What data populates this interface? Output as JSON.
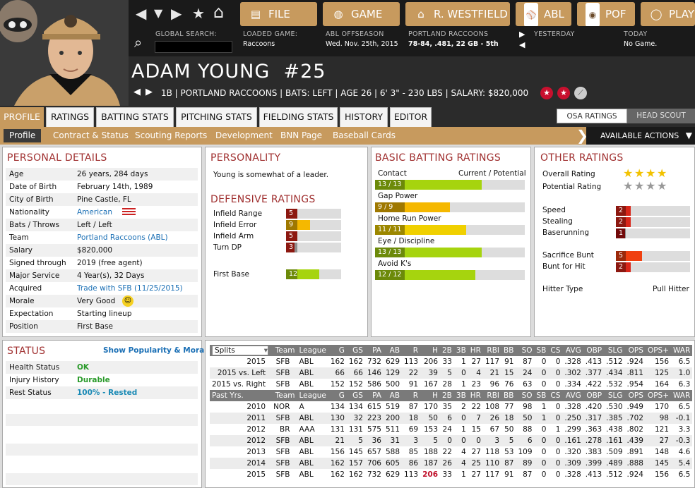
{
  "nav": {
    "back": "◀",
    "down": "▼",
    "forward": "▶",
    "star": "★",
    "home": "⌂"
  },
  "topbuttons": [
    {
      "label": "FILE",
      "icon": "file-icon"
    },
    {
      "label": "GAME",
      "icon": "globe-icon"
    },
    {
      "label": "R. WESTFIELD",
      "icon": "home-icon"
    },
    {
      "label": "ABL",
      "icon": "league-logo"
    },
    {
      "label": "POF",
      "icon": "team-logo"
    },
    {
      "label": "PLAY",
      "icon": "baseball-icon"
    }
  ],
  "info": {
    "search_label": "GLOBAL SEARCH:",
    "loaded_label": "LOADED GAME:",
    "loaded_value": "Raccoons",
    "season_label": "ABL OFFSEASON",
    "season_value": "Wed. Nov. 25th, 2015",
    "team_label": "PORTLAND RACCOONS",
    "team_value": "78-84, .481, 22 GB - 5th",
    "yesterday_label": "YESTERDAY",
    "today_label": "TODAY",
    "today_value": "No Game."
  },
  "player": {
    "name": "ADAM YOUNG  #25",
    "meta": "1B | PORTLAND RACCOONS  |  BATS: LEFT  |  AGE 26  |  6' 3\" - 230 LBS  |  SALARY: $820,000"
  },
  "tabs": [
    "PROFILE",
    "RATINGS",
    "BATTING STATS",
    "PITCHING STATS",
    "FIELDING STATS",
    "HISTORY",
    "EDITOR"
  ],
  "toggles": {
    "osa": "OSA RATINGS",
    "scout": "HEAD SCOUT"
  },
  "subtabs": [
    "Profile",
    "Contract & Status",
    "Scouting Reports",
    "Development",
    "BNN Page",
    "Baseball Cards"
  ],
  "actions": "AVAILABLE ACTIONS",
  "personal": {
    "title": "PERSONAL DETAILS",
    "rows": [
      {
        "k": "Age",
        "v": "26 years, 284 days"
      },
      {
        "k": "Date of Birth",
        "v": "February 14th, 1989"
      },
      {
        "k": "City of Birth",
        "v": "Pine Castle, FL"
      },
      {
        "k": "Nationality",
        "v": "American"
      },
      {
        "k": "Bats / Throws",
        "v": "Left / Left"
      },
      {
        "k": "Team",
        "v": "Portland Raccoons (ABL)"
      },
      {
        "k": "Salary",
        "v": "$820,000"
      },
      {
        "k": "Signed through",
        "v": "2019 (free agent)"
      },
      {
        "k": "Major Service",
        "v": "4 Year(s), 32 Days"
      },
      {
        "k": "Acquired",
        "v": "Trade with SFB (11/25/2015)"
      },
      {
        "k": "Morale",
        "v": "Very Good"
      },
      {
        "k": "Expectation",
        "v": "Starting lineup"
      },
      {
        "k": "Position",
        "v": "First Base"
      }
    ]
  },
  "personality": {
    "title": "PERSONALITY",
    "text": "Young is somewhat of a leader."
  },
  "defensive": {
    "title": "DEFENSIVE RATINGS",
    "rows": [
      {
        "k": "Infield Range",
        "v": "5",
        "frac": 0.2,
        "color": "#d8261a"
      },
      {
        "k": "Infield Error",
        "v": "9",
        "frac": 0.44,
        "color": "#f5b800"
      },
      {
        "k": "Infield Arm",
        "v": "5",
        "frac": 0.2,
        "color": "#d8261a"
      },
      {
        "k": "Turn DP",
        "v": "3",
        "frac": 0.15,
        "color": "#d8261a"
      },
      {
        "k": "First Base",
        "v": "12",
        "frac": 0.6,
        "color": "#a6d40e"
      }
    ]
  },
  "batting": {
    "title": "BASIC BATTING RATINGS",
    "header": "Current / Potential",
    "rows": [
      {
        "k": "Contact",
        "v": "13 / 13",
        "frac": 0.71,
        "color": "#a6d40e"
      },
      {
        "k": "Gap Power",
        "v": "9 / 9",
        "frac": 0.5,
        "color": "#f5b800"
      },
      {
        "k": "Home Run Power",
        "v": "11 / 11",
        "frac": 0.61,
        "color": "#f0d000"
      },
      {
        "k": "Eye / Discipline",
        "v": "13 / 13",
        "frac": 0.71,
        "color": "#a6d40e"
      },
      {
        "k": "Avoid K's",
        "v": "12 / 12",
        "frac": 0.67,
        "color": "#a6d40e"
      }
    ]
  },
  "other": {
    "title": "OTHER RATINGS",
    "overall": "Overall Rating",
    "potential": "Potential Rating",
    "overall_stars": 4,
    "potential_stars": 4,
    "rows": [
      {
        "k": "Speed",
        "v": "2",
        "frac": 0.2,
        "color": "#d8261a"
      },
      {
        "k": "Stealing",
        "v": "2",
        "frac": 0.2,
        "color": "#d8261a"
      },
      {
        "k": "Baserunning",
        "v": "1",
        "frac": 0.12,
        "color": "#b01010"
      },
      {
        "k": "Sacrifice Bunt",
        "v": "5",
        "frac": 0.35,
        "color": "#f04010"
      },
      {
        "k": "Bunt for Hit",
        "v": "2",
        "frac": 0.2,
        "color": "#d8261a"
      }
    ],
    "hitter_label": "Hitter Type",
    "hitter_value": "Pull Hitter"
  },
  "status": {
    "title": "STATUS",
    "link": "Show Popularity & Morale",
    "rows": [
      {
        "k": "Health Status",
        "v": "OK",
        "color": "#2a9a2a"
      },
      {
        "k": "Injury History",
        "v": "Durable",
        "color": "#2a9a2a"
      },
      {
        "k": "Rest Status",
        "v": "100% - Rested",
        "color": "#1a8ab5"
      }
    ]
  },
  "stats": {
    "select": "Splits",
    "headers": [
      "Team",
      "League",
      "G",
      "GS",
      "PA",
      "AB",
      "R",
      "H",
      "2B",
      "3B",
      "HR",
      "RBI",
      "BB",
      "SO",
      "SB",
      "CS",
      "AVG",
      "OBP",
      "SLG",
      "OPS",
      "OPS+",
      "WAR"
    ],
    "splits": [
      [
        "2015",
        "SFB",
        "ABL",
        "162",
        "162",
        "732",
        "629",
        "113",
        "206",
        "33",
        "1",
        "27",
        "117",
        "91",
        "87",
        "0",
        "0",
        ".328",
        ".413",
        ".512",
        ".924",
        "156",
        "6.5"
      ],
      [
        "2015 vs. Left",
        "SFB",
        "ABL",
        "66",
        "66",
        "146",
        "129",
        "22",
        "39",
        "5",
        "0",
        "4",
        "21",
        "15",
        "24",
        "0",
        "0",
        ".302",
        ".377",
        ".434",
        ".811",
        "125",
        "1.0"
      ],
      [
        "2015 vs. Right",
        "SFB",
        "ABL",
        "152",
        "152",
        "586",
        "500",
        "91",
        "167",
        "28",
        "1",
        "23",
        "96",
        "76",
        "63",
        "0",
        "0",
        ".334",
        ".422",
        ".532",
        ".954",
        "164",
        "6.3"
      ]
    ],
    "past_label": "Past Yrs.",
    "past": [
      [
        "2010",
        "NOR",
        "A",
        "134",
        "134",
        "615",
        "519",
        "87",
        "170",
        "35",
        "2",
        "22",
        "108",
        "77",
        "98",
        "1",
        "0",
        ".328",
        ".420",
        ".530",
        ".949",
        "170",
        "6.5"
      ],
      [
        "2011",
        "SFB",
        "ABL",
        "130",
        "32",
        "223",
        "200",
        "18",
        "50",
        "6",
        "0",
        "7",
        "26",
        "18",
        "50",
        "1",
        "0",
        ".250",
        ".317",
        ".385",
        ".702",
        "98",
        "-0.1"
      ],
      [
        "2012",
        "BR",
        "AAA",
        "131",
        "131",
        "575",
        "511",
        "69",
        "153",
        "24",
        "1",
        "15",
        "67",
        "50",
        "88",
        "0",
        "1",
        ".299",
        ".363",
        ".438",
        ".802",
        "121",
        "3.3"
      ],
      [
        "2012",
        "SFB",
        "ABL",
        "21",
        "5",
        "36",
        "31",
        "3",
        "5",
        "0",
        "0",
        "0",
        "3",
        "5",
        "6",
        "0",
        "0",
        ".161",
        ".278",
        ".161",
        ".439",
        "27",
        "-0.3"
      ],
      [
        "2013",
        "SFB",
        "ABL",
        "156",
        "145",
        "657",
        "588",
        "85",
        "188",
        "22",
        "4",
        "27",
        "118",
        "53",
        "109",
        "0",
        "0",
        ".320",
        ".383",
        ".509",
        ".891",
        "148",
        "4.6"
      ],
      [
        "2014",
        "SFB",
        "ABL",
        "162",
        "157",
        "706",
        "605",
        "86",
        "187",
        "26",
        "4",
        "25",
        "110",
        "87",
        "89",
        "0",
        "0",
        ".309",
        ".399",
        ".489",
        ".888",
        "145",
        "5.4"
      ],
      [
        "2015",
        "SFB",
        "ABL",
        "162",
        "162",
        "732",
        "629",
        "113",
        "206",
        "33",
        "1",
        "27",
        "117",
        "91",
        "87",
        "0",
        "0",
        ".328",
        ".413",
        ".512",
        ".924",
        "156",
        "6.5"
      ]
    ]
  }
}
